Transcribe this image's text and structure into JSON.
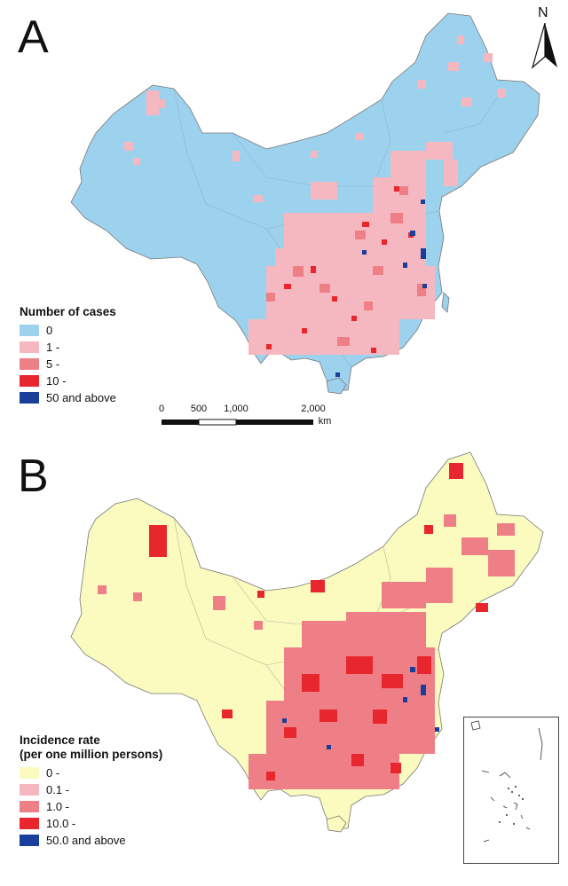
{
  "panel_a": {
    "letter": "A",
    "legend_title": "Number of cases",
    "legend": [
      {
        "label": "0",
        "color": "#9dd2ee"
      },
      {
        "label": "1 -",
        "color": "#f6b8c0"
      },
      {
        "label": "5 -",
        "color": "#ef7f86"
      },
      {
        "label": "10 -",
        "color": "#e8262d"
      },
      {
        "label": "50 and above",
        "color": "#1a3f9a"
      }
    ],
    "scale": {
      "ticks": [
        "0",
        "500",
        "1,000",
        "2,000"
      ],
      "unit": "km"
    },
    "north": "N"
  },
  "panel_b": {
    "letter": "B",
    "legend_title": "Incidence rate\n(per one million persons)",
    "legend": [
      {
        "label": "0 -",
        "color": "#fbfbbf"
      },
      {
        "label": "0.1 -",
        "color": "#f6b8c0"
      },
      {
        "label": "1.0 -",
        "color": "#ef7f86"
      },
      {
        "label": "10.0 -",
        "color": "#e8262d"
      },
      {
        "label": "50.0 and above",
        "color": "#1a3f9a"
      }
    ]
  }
}
